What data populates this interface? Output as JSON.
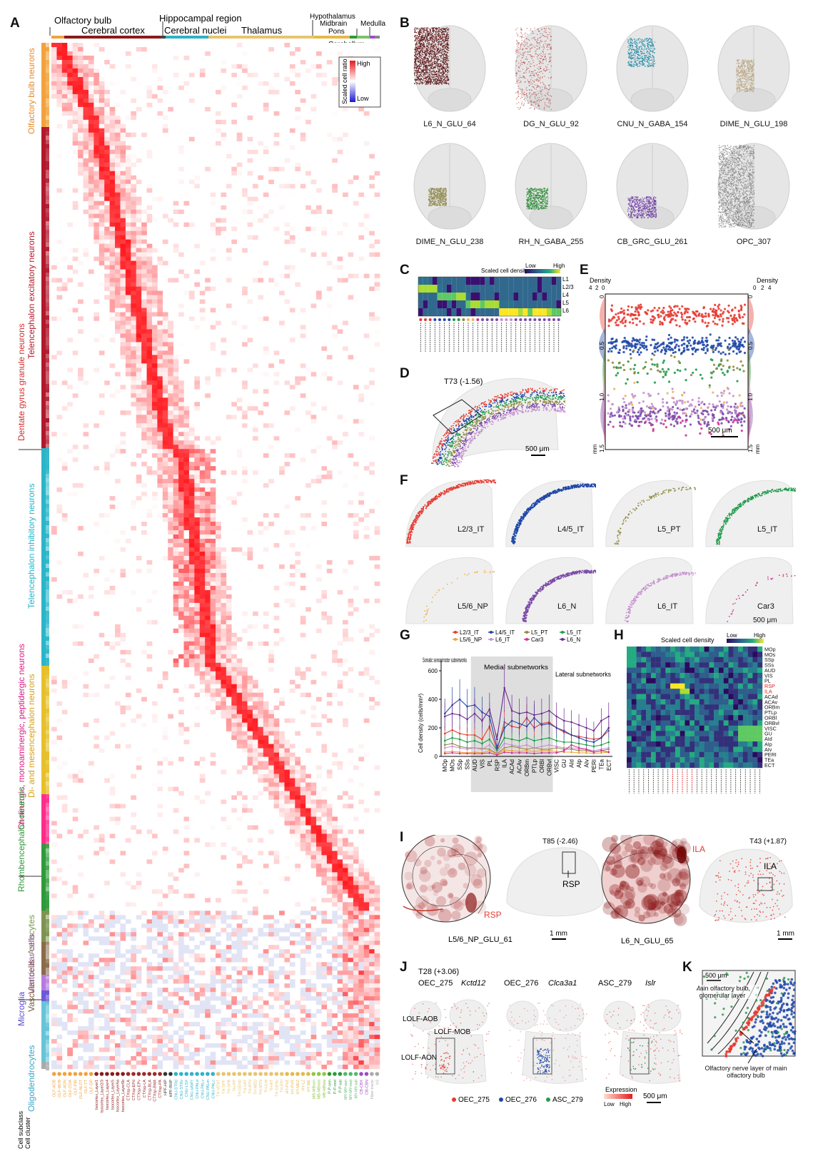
{
  "panels": {
    "A": "A",
    "B": "B",
    "C": "C",
    "D": "D",
    "E": "E",
    "F": "F",
    "G": "G",
    "H": "H",
    "I": "I",
    "J": "J",
    "K": "K"
  },
  "panelA": {
    "regions_top": [
      "Olfactory bulb",
      "Cerebral cortex",
      "Hippocampal region",
      "Cerebral nuclei",
      "Thalamus",
      "Hypothalamus",
      "Midbrain",
      "Medulla",
      "Pons",
      "Cerebellum"
    ],
    "regions_left": [
      "Olfactory bulb neurons",
      "Telencephalon excitatory neurons",
      "Dentate gyrus granule neurons",
      "Telencephalon inhibitory neurons",
      "Di- and mesencephalon neurons",
      "Cholinergic, monoaminergic, peptidergic neurons",
      "Rhombencephalon neurons",
      "Astrocytes",
      "Ventricular cells",
      "Vascular cells",
      "Microglia",
      "Oligodendrocytes"
    ],
    "legend_title": "Scaled cell ratio",
    "legend_high": "High",
    "legend_low": "Low",
    "row_labels": [
      "Cell subclass",
      "Cell cluster"
    ],
    "subregions": [
      "OLF-AOB",
      "OLF-MOB",
      "OLF-AON",
      "OLF-COA",
      "OLF-PIR",
      "OLF-NLOT",
      "OLF-TT",
      "OLF-DP",
      "Isocortex_Layer1",
      "Isocortex_Layer2/3",
      "Isocortex_Layer4",
      "Isocortex_Layer5",
      "Isocortex_Layer6a",
      "Isocortex_Layer6b",
      "CTXsp-CLA",
      "CTXsp-EPd",
      "CTXsp-EPv",
      "CTXsp-LA",
      "CTXsp-BLA",
      "CTXsp-BMA",
      "CTXsp-PA",
      "HPF-HIP",
      "HPF-RHP",
      "CNU-STRd",
      "CNU-STRv",
      "CNU-LSX",
      "CNU-sAMY",
      "CNU-PALd",
      "CNU-PALv",
      "CNU-PALm",
      "CNU-PALc",
      "TH-VENT",
      "TH-SPF",
      "TH-SPA",
      "TH-PP",
      "TH-GENd",
      "TH-LAT",
      "TH-ATN",
      "TH-MED",
      "TH-MTN",
      "TH-ILM",
      "TH-RT",
      "TH-GENv",
      "TH-EPI",
      "HY-PVZ",
      "HY-PVR",
      "HY-MEZ",
      "HY-LZ",
      "HY-ME",
      "MB-MBsen",
      "MB-MBmot",
      "MB-MBsta",
      "P-P-sen",
      "P-P-mot",
      "P-P-sat",
      "MY-MY-sen",
      "MY-MY-mot",
      "MY-MY-sat",
      "CB-CBX",
      "CB-CBN",
      "Fiber tracts",
      "VS"
    ]
  },
  "panelB": {
    "items": [
      {
        "label": "L6_N_GLU_64",
        "color": "#5a0f12"
      },
      {
        "label": "DG_N_GLU_92",
        "color": "#b33a3a"
      },
      {
        "label": "CNU_N_GABA_154",
        "color": "#1e8aa6"
      },
      {
        "label": "DIME_N_GLU_198",
        "color": "#b9a481"
      },
      {
        "label": "DIME_N_GLU_238",
        "color": "#8f8a4f"
      },
      {
        "label": "RH_N_GABA_255",
        "color": "#2e8c3a"
      },
      {
        "label": "CB_GRC_GLU_261",
        "color": "#6b3aa3"
      },
      {
        "label": "OPC_307",
        "color": "#777777"
      }
    ]
  },
  "panelC": {
    "legend_title": "Scaled cell density",
    "legend_low": "Low",
    "legend_high": "High",
    "layers": [
      "L1",
      "L2/3",
      "L4",
      "L5",
      "L6"
    ]
  },
  "panelD": {
    "section": "T73 (-1.56)",
    "scale": "500 μm"
  },
  "panelE": {
    "density_left": "Density",
    "density_right": "Density",
    "ticks_left": [
      "4",
      "2",
      "0"
    ],
    "ticks_right": [
      "0",
      "2",
      "4"
    ],
    "y_ticks": [
      "0",
      "0.5",
      "1.0",
      "1.5"
    ],
    "unit": "mm",
    "scale": "500 μm"
  },
  "panelF": {
    "items": [
      {
        "label": "L2/3_IT",
        "color": "#e53b32"
      },
      {
        "label": "L4/5_IT",
        "color": "#1f47a8"
      },
      {
        "label": "L5_PT",
        "color": "#8f8a3f"
      },
      {
        "label": "L5_IT",
        "color": "#1f9a4a"
      },
      {
        "label": "L5/6_NP",
        "color": "#f0b25a"
      },
      {
        "label": "L6_N",
        "color": "#7b4aa8"
      },
      {
        "label": "L6_IT",
        "color": "#c58fd0"
      },
      {
        "label": "Car3",
        "color": "#d1338f"
      }
    ],
    "scale": "500 μm"
  },
  "panelG": {
    "legend": [
      {
        "name": "L2/3_IT",
        "color": "#e53b32"
      },
      {
        "name": "L4/5_IT",
        "color": "#1f47a8"
      },
      {
        "name": "L5_PT",
        "color": "#8f8a3f"
      },
      {
        "name": "L5_IT",
        "color": "#1f9a4a"
      },
      {
        "name": "L5/6_NP",
        "color": "#f0a030"
      },
      {
        "name": "L6_IT",
        "color": "#c58fd0"
      },
      {
        "name": "Car3",
        "color": "#d1338f"
      },
      {
        "name": "L6_N",
        "color": "#6b2a90"
      }
    ],
    "groups": [
      "Somatic sensorimotor subnetworks",
      "Medial subnetworks",
      "Lateral subnetworks"
    ],
    "ylabel": "Cell density (cells/mm²)",
    "yticks": [
      "0",
      "200",
      "400",
      "600"
    ]
  },
  "chart_data": {
    "type": "line",
    "title": "",
    "xlabel": "",
    "ylabel": "Cell density (cells/mm²)",
    "ylim": [
      0,
      650
    ],
    "categories": [
      "MOp",
      "MOs",
      "SSp",
      "SSs",
      "AUD",
      "VIS",
      "PL",
      "RSP",
      "ILA",
      "ACAd",
      "ACAv",
      "ORBm",
      "PTLp",
      "ORBl",
      "ORBvl",
      "VISC",
      "GU",
      "AId",
      "AIp",
      "AIv",
      "PERI",
      "TEa",
      "ECT"
    ],
    "series": [
      {
        "name": "L2/3_IT",
        "values": [
          160,
          185,
          160,
          150,
          150,
          120,
          210,
          40,
          240,
          210,
          200,
          270,
          200,
          230,
          240,
          200,
          170,
          150,
          140,
          130,
          120,
          130,
          180
        ]
      },
      {
        "name": "L4/5_IT",
        "values": [
          300,
          360,
          400,
          350,
          360,
          310,
          280,
          60,
          200,
          250,
          230,
          210,
          270,
          220,
          230,
          200,
          180,
          150,
          130,
          110,
          100,
          130,
          200
        ]
      },
      {
        "name": "L5_PT",
        "values": [
          80,
          90,
          70,
          60,
          60,
          55,
          50,
          20,
          60,
          70,
          60,
          50,
          60,
          50,
          50,
          60,
          50,
          50,
          40,
          40,
          30,
          40,
          50
        ]
      },
      {
        "name": "L5_IT",
        "values": [
          110,
          130,
          120,
          100,
          110,
          90,
          120,
          40,
          130,
          120,
          110,
          130,
          110,
          120,
          130,
          110,
          100,
          100,
          90,
          80,
          70,
          80,
          100
        ]
      },
      {
        "name": "L5/6_NP",
        "values": [
          30,
          35,
          30,
          25,
          30,
          25,
          40,
          15,
          45,
          40,
          35,
          40,
          35,
          40,
          40,
          35,
          30,
          30,
          25,
          25,
          20,
          25,
          30
        ]
      },
      {
        "name": "L6_IT",
        "values": [
          60,
          70,
          60,
          50,
          60,
          50,
          80,
          30,
          90,
          80,
          70,
          80,
          60,
          70,
          80,
          70,
          60,
          60,
          50,
          50,
          40,
          50,
          60
        ]
      },
      {
        "name": "Car3",
        "values": [
          20,
          25,
          20,
          20,
          20,
          20,
          25,
          10,
          30,
          25,
          25,
          25,
          20,
          25,
          25,
          25,
          40,
          80,
          60,
          50,
          30,
          40,
          30
        ]
      },
      {
        "name": "L6_N",
        "values": [
          280,
          300,
          290,
          260,
          300,
          250,
          330,
          120,
          480,
          320,
          300,
          310,
          290,
          300,
          320,
          280,
          250,
          240,
          220,
          200,
          180,
          250,
          280
        ]
      }
    ]
  },
  "panelH": {
    "legend_title": "Scaled cell density",
    "legend_low": "Low",
    "legend_high": "High",
    "areas": [
      "MOp",
      "MOs",
      "SSp",
      "SSs",
      "AUD",
      "VIS",
      "PL",
      "RSP",
      "ILA",
      "ACAd",
      "ACAv",
      "ORBm",
      "PTLp",
      "ORBl",
      "ORBvl",
      "VISC",
      "GU",
      "AId",
      "AIp",
      "AIv",
      "PERI",
      "TEa",
      "ECT"
    ],
    "highlight": [
      "RSP",
      "ILA"
    ]
  },
  "panelI": {
    "left_section": "T85 (-2.46)",
    "right_section": "T43 (+1.87)",
    "left_region": "RSP",
    "left_region2": "RSP",
    "right_region": "ILA",
    "right_region2": "ILA",
    "left_cluster": "L5/6_NP_GLU_61",
    "right_cluster": "L6_N_GLU_65",
    "scale": "1 mm"
  },
  "panelJ": {
    "section": "T28 (+3.06)",
    "items": [
      {
        "cluster": "OEC_275",
        "gene": "Kctd12"
      },
      {
        "cluster": "OEC_276",
        "gene": "Clca3a1"
      },
      {
        "cluster": "ASC_279",
        "gene": "Islr"
      }
    ],
    "regions": [
      "LOLF-AOB",
      "LOLF-MOB",
      "LOLF-AON"
    ],
    "legend": [
      {
        "name": "OEC_275",
        "color": "#e53b32"
      },
      {
        "name": "OEC_276",
        "color": "#1f47a8"
      },
      {
        "name": "ASC_279",
        "color": "#2e9a4a"
      }
    ],
    "expr_title": "Expression",
    "expr_low": "Low",
    "expr_high": "High",
    "scale": "500 μm"
  },
  "panelK": {
    "scale": "500 μm",
    "label1": "Main olfactory bulb, glomerular layer",
    "label2": "Olfactory nerve layer of main olfactory bulb"
  }
}
